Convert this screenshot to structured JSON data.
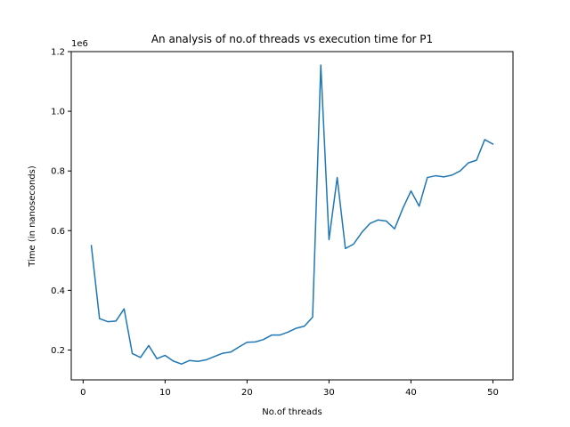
{
  "chart_data": {
    "type": "line",
    "title": "An analysis of no.of threads vs execution time for P1",
    "xlabel": "No.of threads",
    "ylabel": "Time (in nanoseconds)",
    "y_offset_label": "1e6",
    "xlim": [
      -1.45,
      52.45
    ],
    "ylim": [
      100000,
      1200000
    ],
    "xticks": [
      0,
      10,
      20,
      30,
      40,
      50
    ],
    "xtick_labels": [
      "0",
      "10",
      "20",
      "30",
      "40",
      "50"
    ],
    "yticks": [
      200000,
      400000,
      600000,
      800000,
      1000000,
      1200000
    ],
    "ytick_labels": [
      "0.2",
      "0.4",
      "0.6",
      "0.8",
      "1.0",
      "1.2"
    ],
    "grid": false,
    "line_color": "#1f77b4",
    "x": [
      1,
      2,
      3,
      4,
      5,
      6,
      7,
      8,
      9,
      10,
      11,
      12,
      13,
      14,
      15,
      16,
      17,
      18,
      19,
      20,
      21,
      22,
      23,
      24,
      25,
      26,
      27,
      28,
      29,
      30,
      31,
      32,
      33,
      34,
      35,
      36,
      37,
      38,
      39,
      40,
      41,
      42,
      43,
      44,
      45,
      46,
      47,
      48,
      49,
      50
    ],
    "y": [
      550000,
      305000,
      295000,
      297000,
      338000,
      188000,
      175000,
      215000,
      171000,
      182000,
      163000,
      153000,
      165000,
      162000,
      167000,
      178000,
      189000,
      193000,
      210000,
      226000,
      227000,
      235000,
      250000,
      250000,
      260000,
      273000,
      280000,
      310000,
      1155000,
      570000,
      778000,
      540000,
      555000,
      594000,
      624000,
      636000,
      632000,
      606000,
      674000,
      733000,
      682000,
      778000,
      784000,
      780000,
      786000,
      800000,
      827000,
      836000,
      905000,
      890000
    ]
  }
}
